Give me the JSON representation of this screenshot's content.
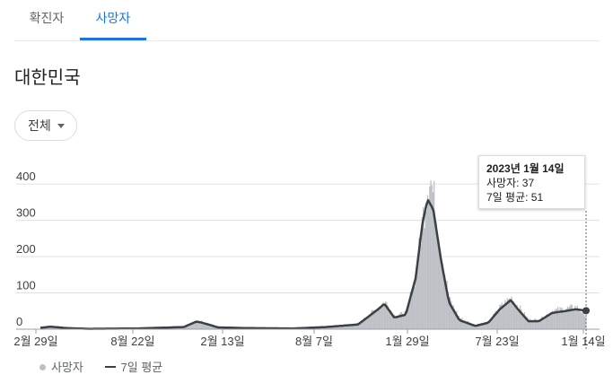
{
  "tabs": [
    {
      "label": "확진자",
      "selected": false
    },
    {
      "label": "사망자",
      "selected": true
    }
  ],
  "region_title": "대한민국",
  "filter": {
    "selected": "전체"
  },
  "tooltip": {
    "date": "2023년 1월 14일",
    "deaths_label": "사망자: 37",
    "avg_label": "7일 평균: 51"
  },
  "legend": {
    "bars": "사망자",
    "line": "7일 평균"
  },
  "colors": {
    "accent": "#1a73e8",
    "bars": "#bdc1c6",
    "line": "#3c4043",
    "grid": "#e0e0e0"
  },
  "chart_data": {
    "type": "bar",
    "x_tick_labels": [
      "2월 29일",
      "8월 22일",
      "2월 13일",
      "8월 7일",
      "1월 29일",
      "7월 23일",
      "1월 14일"
    ],
    "y_ticks": [
      0,
      100,
      200,
      300,
      400
    ],
    "ylim": [
      0,
      450
    ],
    "x_start": "2020-02-29",
    "x_end": "2023-01-14",
    "series": [
      {
        "name": "사망자",
        "kind": "bar",
        "anchors": [
          [
            "2020-02-29",
            2
          ],
          [
            "2020-03-20",
            8
          ],
          [
            "2020-04-20",
            3
          ],
          [
            "2020-06-01",
            1
          ],
          [
            "2020-09-01",
            3
          ],
          [
            "2020-12-01",
            8
          ],
          [
            "2020-12-25",
            22
          ],
          [
            "2021-01-05",
            20
          ],
          [
            "2021-02-05",
            6
          ],
          [
            "2021-04-01",
            3
          ],
          [
            "2021-07-01",
            2
          ],
          [
            "2021-09-01",
            7
          ],
          [
            "2021-11-01",
            15
          ],
          [
            "2021-12-10",
            60
          ],
          [
            "2021-12-22",
            75
          ],
          [
            "2022-01-10",
            35
          ],
          [
            "2022-02-01",
            45
          ],
          [
            "2022-02-20",
            150
          ],
          [
            "2022-03-05",
            300
          ],
          [
            "2022-03-18",
            420
          ],
          [
            "2022-03-26",
            350
          ],
          [
            "2022-04-10",
            200
          ],
          [
            "2022-04-25",
            80
          ],
          [
            "2022-05-15",
            30
          ],
          [
            "2022-06-15",
            10
          ],
          [
            "2022-07-10",
            20
          ],
          [
            "2022-08-01",
            60
          ],
          [
            "2022-08-22",
            85
          ],
          [
            "2022-09-05",
            60
          ],
          [
            "2022-09-25",
            25
          ],
          [
            "2022-10-15",
            25
          ],
          [
            "2022-11-10",
            50
          ],
          [
            "2022-12-05",
            55
          ],
          [
            "2022-12-25",
            60
          ],
          [
            "2023-01-14",
            37
          ]
        ]
      },
      {
        "name": "7일 평균",
        "kind": "line",
        "anchors": [
          [
            "2020-02-29",
            4
          ],
          [
            "2020-03-20",
            7
          ],
          [
            "2020-04-20",
            3
          ],
          [
            "2020-06-01",
            1
          ],
          [
            "2020-09-01",
            2
          ],
          [
            "2020-12-01",
            6
          ],
          [
            "2020-12-25",
            21
          ],
          [
            "2021-01-05",
            18
          ],
          [
            "2021-02-05",
            5
          ],
          [
            "2021-04-01",
            3
          ],
          [
            "2021-07-01",
            2
          ],
          [
            "2021-09-01",
            6
          ],
          [
            "2021-11-01",
            13
          ],
          [
            "2021-12-10",
            55
          ],
          [
            "2021-12-22",
            70
          ],
          [
            "2022-01-10",
            32
          ],
          [
            "2022-02-01",
            40
          ],
          [
            "2022-02-20",
            140
          ],
          [
            "2022-03-05",
            290
          ],
          [
            "2022-03-15",
            358
          ],
          [
            "2022-03-26",
            330
          ],
          [
            "2022-04-10",
            190
          ],
          [
            "2022-04-25",
            75
          ],
          [
            "2022-05-15",
            25
          ],
          [
            "2022-06-15",
            9
          ],
          [
            "2022-07-10",
            18
          ],
          [
            "2022-08-01",
            55
          ],
          [
            "2022-08-22",
            80
          ],
          [
            "2022-09-05",
            55
          ],
          [
            "2022-09-25",
            22
          ],
          [
            "2022-10-15",
            22
          ],
          [
            "2022-11-10",
            45
          ],
          [
            "2022-12-05",
            50
          ],
          [
            "2022-12-25",
            55
          ],
          [
            "2023-01-14",
            51
          ]
        ]
      }
    ],
    "xlabel": "",
    "ylabel": ""
  }
}
